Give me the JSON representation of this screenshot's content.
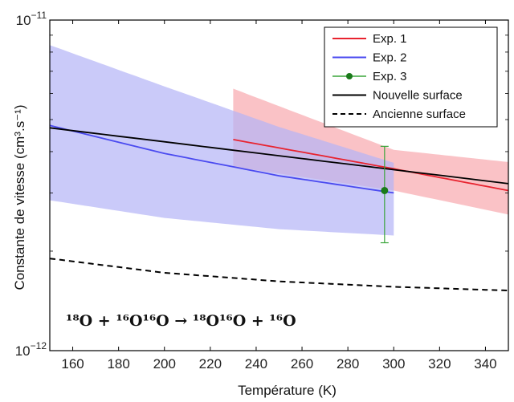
{
  "chart_data": {
    "type": "line",
    "xlabel": "Température (K)",
    "ylabel": "Constante de vitesse (cm³.s⁻¹)",
    "xlim": [
      150,
      350
    ],
    "ylim": [
      1e-12,
      1e-11
    ],
    "y_scale": "log",
    "x_ticks": [
      160,
      180,
      200,
      220,
      240,
      260,
      280,
      300,
      320,
      340
    ],
    "y_ticks": [
      {
        "value": 1e-12,
        "label": "10−12"
      },
      {
        "value": 1e-11,
        "label": "10−11"
      }
    ],
    "grid": false,
    "legend_position": "top-right",
    "annotation": "¹⁸O + ¹⁶O¹⁶O → ¹⁸O¹⁶O + ¹⁶O",
    "series": [
      {
        "name": "Exp. 1",
        "color": "#e8232f",
        "style": "solid",
        "x": [
          230,
          300,
          350
        ],
        "y": [
          4.35e-12,
          3.55e-12,
          3.05e-12
        ],
        "band_lower": [
          3.6e-12,
          3.05e-12,
          2.58e-12
        ],
        "band_upper": [
          6.2e-12,
          4.05e-12,
          3.72e-12
        ],
        "band_color": "#f8a8ae"
      },
      {
        "name": "Exp. 2",
        "color": "#4a4af0",
        "style": "solid",
        "x": [
          150,
          200,
          250,
          300
        ],
        "y": [
          4.8e-12,
          3.95e-12,
          3.38e-12,
          3e-12
        ],
        "band_lower": [
          2.85e-12,
          2.52e-12,
          2.33e-12,
          2.23e-12
        ],
        "band_upper": [
          8.4e-12,
          6.3e-12,
          4.75e-12,
          3.7e-12
        ],
        "band_color": "#b4b4f6"
      },
      {
        "name": "Exp. 3",
        "color": "#1a7a1a",
        "style": "point",
        "x": [
          296
        ],
        "y": [
          3.05e-12
        ],
        "err_low": [
          2.12e-12
        ],
        "err_high": [
          4.15e-12
        ]
      },
      {
        "name": "Nouvelle surface",
        "color": "#000000",
        "style": "solid",
        "x": [
          150,
          350
        ],
        "y": [
          4.72e-12,
          3.2e-12
        ]
      },
      {
        "name": "Ancienne surface",
        "color": "#000000",
        "style": "dashed",
        "x": [
          150,
          200,
          250,
          300,
          350
        ],
        "y": [
          1.9e-12,
          1.72e-12,
          1.62e-12,
          1.56e-12,
          1.52e-12
        ]
      }
    ]
  }
}
